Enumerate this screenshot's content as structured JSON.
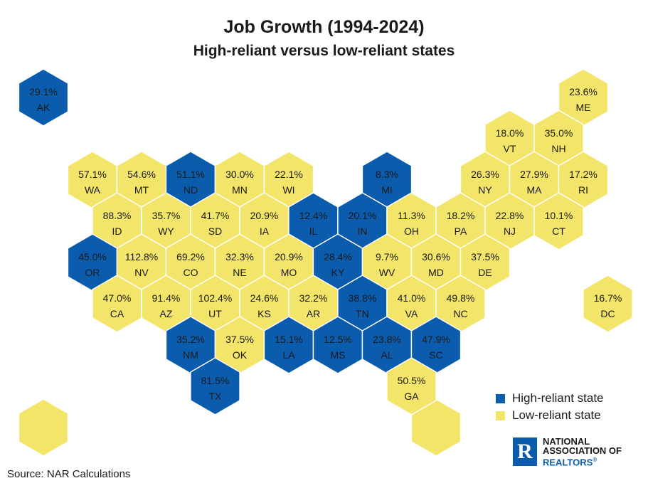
{
  "title": "Job Growth (1994-2024)",
  "subtitle": "High-reliant versus low-reliant states",
  "colors": {
    "high": "#0b5cad",
    "low": "#f3e46a",
    "text": "#1a1a1a"
  },
  "legend": {
    "high_label": "High-reliant state",
    "low_label": "Low-reliant state"
  },
  "source": "Source: NAR Calculations",
  "logo": {
    "line1": "NATIONAL",
    "line2": "ASSOCIATION OF",
    "line3": "REALTORS",
    "mark": "R",
    "reg": "®"
  },
  "chart_data": {
    "type": "hex-tile-map",
    "title": "Job Growth (1994-2024)",
    "subtitle": "High-reliant versus low-reliant states",
    "states": [
      {
        "abbr": "AK",
        "value": "29.1%",
        "category": "high",
        "row": 0,
        "col": 0
      },
      {
        "abbr": "ME",
        "value": "23.6%",
        "category": "low",
        "row": 0,
        "col": 11
      },
      {
        "abbr": "VT",
        "value": "18.0%",
        "category": "low",
        "row": 1,
        "col": 9
      },
      {
        "abbr": "NH",
        "value": "35.0%",
        "category": "low",
        "row": 1,
        "col": 10
      },
      {
        "abbr": "WA",
        "value": "57.1%",
        "category": "low",
        "row": 2,
        "col": 1
      },
      {
        "abbr": "MT",
        "value": "54.6%",
        "category": "low",
        "row": 2,
        "col": 2
      },
      {
        "abbr": "ND",
        "value": "51.1%",
        "category": "high",
        "row": 2,
        "col": 3
      },
      {
        "abbr": "MN",
        "value": "30.0%",
        "category": "low",
        "row": 2,
        "col": 4
      },
      {
        "abbr": "WI",
        "value": "22.1%",
        "category": "low",
        "row": 2,
        "col": 5
      },
      {
        "abbr": "MI",
        "value": "8.3%",
        "category": "high",
        "row": 2,
        "col": 7
      },
      {
        "abbr": "NY",
        "value": "26.3%",
        "category": "low",
        "row": 2,
        "col": 9
      },
      {
        "abbr": "MA",
        "value": "27.9%",
        "category": "low",
        "row": 2,
        "col": 10
      },
      {
        "abbr": "RI",
        "value": "17.2%",
        "category": "low",
        "row": 2,
        "col": 11
      },
      {
        "abbr": "ID",
        "value": "88.3%",
        "category": "low",
        "row": 3,
        "col": 1
      },
      {
        "abbr": "WY",
        "value": "35.7%",
        "category": "low",
        "row": 3,
        "col": 2
      },
      {
        "abbr": "SD",
        "value": "41.7%",
        "category": "low",
        "row": 3,
        "col": 3
      },
      {
        "abbr": "IA",
        "value": "20.9%",
        "category": "low",
        "row": 3,
        "col": 4
      },
      {
        "abbr": "IL",
        "value": "12.4%",
        "category": "high",
        "row": 3,
        "col": 5
      },
      {
        "abbr": "IN",
        "value": "20.1%",
        "category": "high",
        "row": 3,
        "col": 6
      },
      {
        "abbr": "OH",
        "value": "11.3%",
        "category": "low",
        "row": 3,
        "col": 7
      },
      {
        "abbr": "PA",
        "value": "18.2%",
        "category": "low",
        "row": 3,
        "col": 8
      },
      {
        "abbr": "NJ",
        "value": "22.8%",
        "category": "low",
        "row": 3,
        "col": 9
      },
      {
        "abbr": "CT",
        "value": "10.1%",
        "category": "low",
        "row": 3,
        "col": 10
      },
      {
        "abbr": "OR",
        "value": "45.0%",
        "category": "high",
        "row": 4,
        "col": 1
      },
      {
        "abbr": "NV",
        "value": "112.8%",
        "category": "low",
        "row": 4,
        "col": 2
      },
      {
        "abbr": "CO",
        "value": "69.2%",
        "category": "low",
        "row": 4,
        "col": 3
      },
      {
        "abbr": "NE",
        "value": "32.3%",
        "category": "low",
        "row": 4,
        "col": 4
      },
      {
        "abbr": "MO",
        "value": "20.9%",
        "category": "low",
        "row": 4,
        "col": 5
      },
      {
        "abbr": "KY",
        "value": "28.4%",
        "category": "high",
        "row": 4,
        "col": 6
      },
      {
        "abbr": "WV",
        "value": "9.7%",
        "category": "low",
        "row": 4,
        "col": 7
      },
      {
        "abbr": "MD",
        "value": "30.6%",
        "category": "low",
        "row": 4,
        "col": 8
      },
      {
        "abbr": "DE",
        "value": "37.5%",
        "category": "low",
        "row": 4,
        "col": 9
      },
      {
        "abbr": "CA",
        "value": "47.0%",
        "category": "low",
        "row": 5,
        "col": 1
      },
      {
        "abbr": "AZ",
        "value": "91.4%",
        "category": "low",
        "row": 5,
        "col": 2
      },
      {
        "abbr": "UT",
        "value": "102.4%",
        "category": "low",
        "row": 5,
        "col": 3
      },
      {
        "abbr": "KS",
        "value": "24.6%",
        "category": "low",
        "row": 5,
        "col": 4
      },
      {
        "abbr": "AR",
        "value": "32.2%",
        "category": "low",
        "row": 5,
        "col": 5
      },
      {
        "abbr": "TN",
        "value": "38.8%",
        "category": "high",
        "row": 5,
        "col": 6
      },
      {
        "abbr": "VA",
        "value": "41.0%",
        "category": "low",
        "row": 5,
        "col": 7
      },
      {
        "abbr": "NC",
        "value": "49.8%",
        "category": "low",
        "row": 5,
        "col": 8
      },
      {
        "abbr": "DC",
        "value": "16.7%",
        "category": "low",
        "row": 5,
        "col": 11
      },
      {
        "abbr": "NM",
        "value": "35.2%",
        "category": "high",
        "row": 6,
        "col": 3
      },
      {
        "abbr": "OK",
        "value": "37.5%",
        "category": "low",
        "row": 6,
        "col": 4
      },
      {
        "abbr": "LA",
        "value": "15.1%",
        "category": "high",
        "row": 6,
        "col": 5
      },
      {
        "abbr": "MS",
        "value": "12.5%",
        "category": "high",
        "row": 6,
        "col": 6
      },
      {
        "abbr": "AL",
        "value": "23.8%",
        "category": "high",
        "row": 6,
        "col": 7
      },
      {
        "abbr": "SC",
        "value": "47.9%",
        "category": "high",
        "row": 6,
        "col": 8
      },
      {
        "abbr": "TX",
        "value": "81.5%",
        "category": "high",
        "row": 7,
        "col": 3
      },
      {
        "abbr": "GA",
        "value": "50.5%",
        "category": "low",
        "row": 7,
        "col": 7
      }
    ],
    "unlabeled_tiles": [
      {
        "category": "low",
        "row": 8,
        "col": 0
      },
      {
        "category": "low",
        "row": 8,
        "col": 8
      }
    ]
  }
}
